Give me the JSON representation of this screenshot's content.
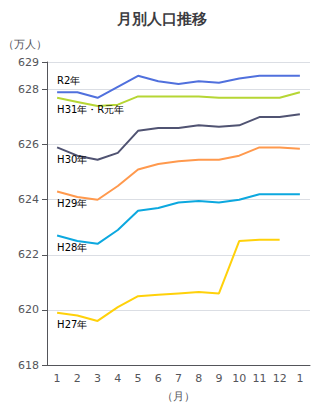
{
  "chart_data": {
    "type": "line",
    "title": "月別人口推移",
    "xlabel": "（月）",
    "ylabel": "（万人）",
    "categories": [
      "1",
      "2",
      "3",
      "4",
      "5",
      "6",
      "7",
      "8",
      "9",
      "10",
      "11",
      "12",
      "1"
    ],
    "series": [
      {
        "name": "R2年",
        "values": [
          627.9,
          627.9,
          627.7,
          628.1,
          628.5,
          628.3,
          628.2,
          628.3,
          628.25,
          628.4,
          628.5,
          628.5,
          628.5
        ]
      },
      {
        "name": "H31年・R元年",
        "values": [
          627.7,
          627.55,
          627.4,
          627.45,
          627.75,
          627.75,
          627.75,
          627.75,
          627.7,
          627.7,
          627.7,
          627.7,
          627.9
        ]
      },
      {
        "name": "H30年",
        "values": [
          625.9,
          625.6,
          625.45,
          625.7,
          626.5,
          626.6,
          626.6,
          626.7,
          626.65,
          626.7,
          627.0,
          627.0,
          627.1
        ]
      },
      {
        "name": "H29年",
        "values": [
          624.3,
          624.1,
          624.0,
          624.5,
          625.1,
          625.3,
          625.4,
          625.45,
          625.45,
          625.6,
          625.9,
          625.9,
          625.85
        ]
      },
      {
        "name": "H28年",
        "values": [
          622.7,
          622.5,
          622.4,
          622.9,
          623.6,
          623.7,
          623.9,
          623.95,
          623.9,
          624.0,
          624.2,
          624.2,
          624.2
        ]
      },
      {
        "name": "H27年",
        "values": [
          619.9,
          619.8,
          619.6,
          620.1,
          620.5,
          620.55,
          620.6,
          620.65,
          620.6,
          622.5,
          622.55,
          622.55,
          null
        ]
      }
    ],
    "ylim": [
      618,
      629
    ],
    "yticks": [
      618,
      620,
      622,
      624,
      626,
      628,
      629
    ],
    "grid": true
  }
}
